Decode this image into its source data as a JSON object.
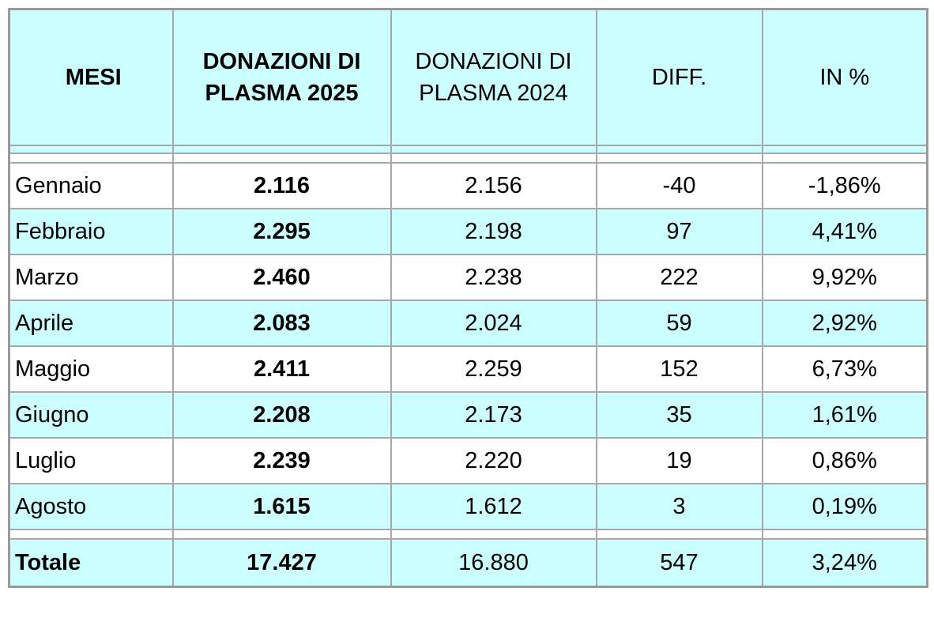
{
  "header": [
    "MESI",
    "DONAZIONI DI PLASMA 2025",
    "DONAZIONI DI PLASMA 2024",
    "DIFF.",
    "IN %"
  ],
  "rows": [
    [
      "Gennaio",
      "2.116",
      "2.156",
      "-40",
      "-1,86%"
    ],
    [
      "Febbraio",
      "2.295",
      "2.198",
      "97",
      "4,41%"
    ],
    [
      "Marzo",
      "2.460",
      "2.238",
      "222",
      "9,92%"
    ],
    [
      "Aprile",
      "2.083",
      "2.024",
      "59",
      "2,92%"
    ],
    [
      "Maggio",
      "2.411",
      "2.259",
      "152",
      "6,73%"
    ],
    [
      "Giugno",
      "2.208",
      "2.173",
      "35",
      "1,61%"
    ],
    [
      "Luglio",
      "2.239",
      "2.220",
      "19",
      "0,86%"
    ],
    [
      "Agosto",
      "1.615",
      "1.612",
      "3",
      "0,19%"
    ]
  ],
  "total": [
    "Totale",
    "17.427",
    "16.880",
    "547",
    "3,24%"
  ]
}
